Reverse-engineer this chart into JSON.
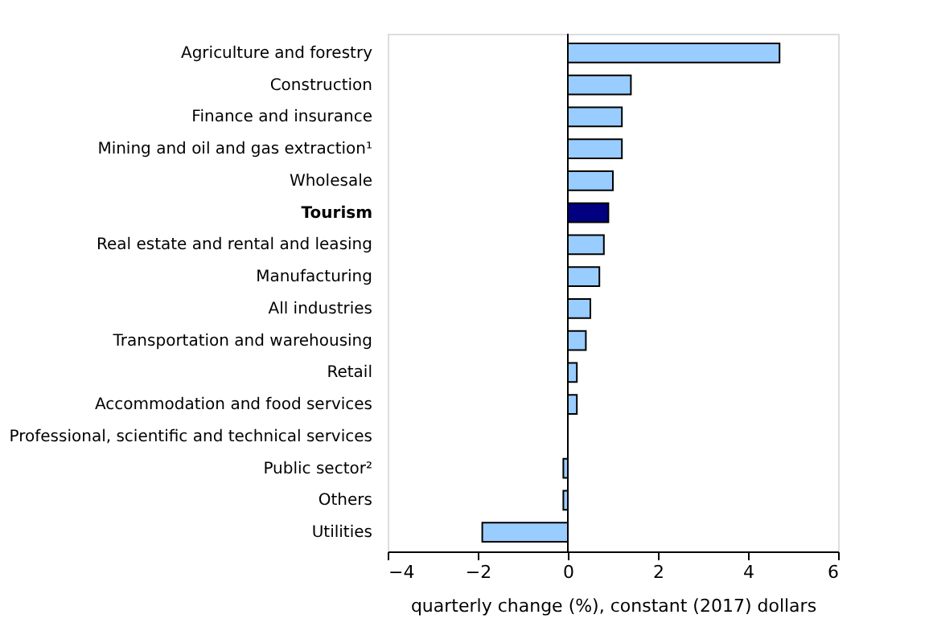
{
  "chart_data": {
    "type": "bar",
    "orientation": "horizontal",
    "xlabel": "quarterly change (%), constant (2017) dollars",
    "categories": [
      "Agriculture and forestry",
      "Construction",
      "Finance and insurance",
      "Mining and oil and gas extraction¹",
      "Wholesale",
      "Tourism",
      "Real estate and rental and leasing",
      "Manufacturing",
      "All industries",
      "Transportation and warehousing",
      "Retail",
      "Accommodation and food services",
      "Professional, scientific and technical services",
      "Public sector²",
      "Others",
      "Utilities"
    ],
    "values": [
      4.7,
      1.4,
      1.2,
      1.2,
      1.0,
      0.9,
      0.8,
      0.7,
      0.5,
      0.4,
      0.2,
      0.2,
      null,
      -0.1,
      -0.1,
      -1.9
    ],
    "colors": [
      "#99ccff",
      "#99ccff",
      "#99ccff",
      "#99ccff",
      "#99ccff",
      "#000080",
      "#99ccff",
      "#99ccff",
      "#99ccff",
      "#99ccff",
      "#99ccff",
      "#99ccff",
      "#99ccff",
      "#99ccff",
      "#99ccff",
      "#99ccff"
    ],
    "xlim": [
      -4,
      6
    ],
    "xticks": [
      -4,
      -2,
      0,
      2,
      4,
      6
    ],
    "ref_lines": [
      {
        "axis": "x",
        "value": 0,
        "color": "#000000"
      }
    ],
    "grid": false
  }
}
